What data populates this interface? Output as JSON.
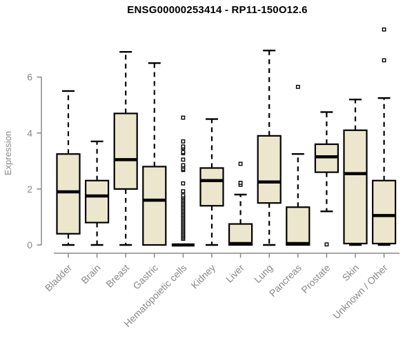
{
  "title": "ENSG00000253414 - RP11-150O12.6",
  "colors": {
    "box_fill": "#ECE6CD",
    "box_stroke": "#000000",
    "median": "#000000",
    "axis_gray": "#888888",
    "title_color": "#000000",
    "background": "#FFFFFF"
  },
  "chart_data": {
    "type": "box",
    "title": "ENSG00000253414 - RP11-150O12.6",
    "xlabel": "",
    "ylabel": "Expression",
    "yticks": [
      0,
      2,
      4,
      6
    ],
    "ylim": [
      0,
      7.8
    ],
    "grid": false,
    "legend": "none",
    "categories": [
      "Bladder",
      "Brain",
      "Breast",
      "Gastric",
      "Hematopoietic cells",
      "Kidney",
      "Liver",
      "Lung",
      "Pancreas",
      "Prostate",
      "Skin",
      "Unknown / Other"
    ],
    "series": [
      {
        "name": "Bladder",
        "low": 0,
        "q1": 0.4,
        "median": 1.9,
        "q3": 3.25,
        "high": 5.5,
        "outliers": []
      },
      {
        "name": "Brain",
        "low": 0,
        "q1": 0.8,
        "median": 1.75,
        "q3": 2.3,
        "high": 3.7,
        "outliers": []
      },
      {
        "name": "Breast",
        "low": 0,
        "q1": 2.0,
        "median": 3.05,
        "q3": 4.7,
        "high": 6.9,
        "outliers": []
      },
      {
        "name": "Gastric",
        "low": 0,
        "q1": 0,
        "median": 1.6,
        "q3": 2.8,
        "high": 6.5,
        "outliers": []
      },
      {
        "name": "Hematopoietic cells",
        "low": 0,
        "q1": 0,
        "median": 0,
        "q3": 0,
        "high": 0,
        "outliers": [
          0.22,
          0.27,
          0.32,
          0.37,
          0.42,
          0.47,
          0.52,
          0.57,
          0.62,
          0.67,
          0.72,
          0.77,
          0.82,
          0.87,
          0.92,
          0.97,
          1.02,
          1.07,
          1.12,
          1.17,
          1.22,
          1.27,
          1.32,
          1.37,
          1.42,
          1.47,
          1.52,
          1.57,
          1.62,
          1.67,
          1.72,
          1.77,
          1.92,
          2.2,
          2.68,
          2.72,
          2.8,
          2.85,
          3.05,
          3.28,
          3.32,
          3.47,
          3.52,
          3.7,
          4.55
        ]
      },
      {
        "name": "Kidney",
        "low": 0,
        "q1": 1.4,
        "median": 2.3,
        "q3": 2.75,
        "high": 4.5,
        "outliers": []
      },
      {
        "name": "Liver",
        "low": 0,
        "q1": 0,
        "median": 0.05,
        "q3": 0.75,
        "high": 1.8,
        "outliers": [
          2.15,
          2.22,
          2.9
        ]
      },
      {
        "name": "Lung",
        "low": 0,
        "q1": 1.5,
        "median": 2.25,
        "q3": 3.9,
        "high": 6.95,
        "outliers": []
      },
      {
        "name": "Pancreas",
        "low": 0,
        "q1": 0,
        "median": 0.05,
        "q3": 1.35,
        "high": 3.25,
        "outliers": [
          5.65
        ]
      },
      {
        "name": "Prostate",
        "low": 1.2,
        "q1": 2.6,
        "median": 3.15,
        "q3": 3.6,
        "high": 4.75,
        "outliers": [
          0.02
        ]
      },
      {
        "name": "Skin",
        "low": 0,
        "q1": 0.05,
        "median": 2.55,
        "q3": 4.1,
        "high": 5.2,
        "outliers": []
      },
      {
        "name": "Unknown / Other",
        "low": 0,
        "q1": 0.05,
        "median": 1.05,
        "q3": 2.3,
        "high": 5.25,
        "outliers": [
          6.6,
          7.7
        ]
      }
    ]
  }
}
